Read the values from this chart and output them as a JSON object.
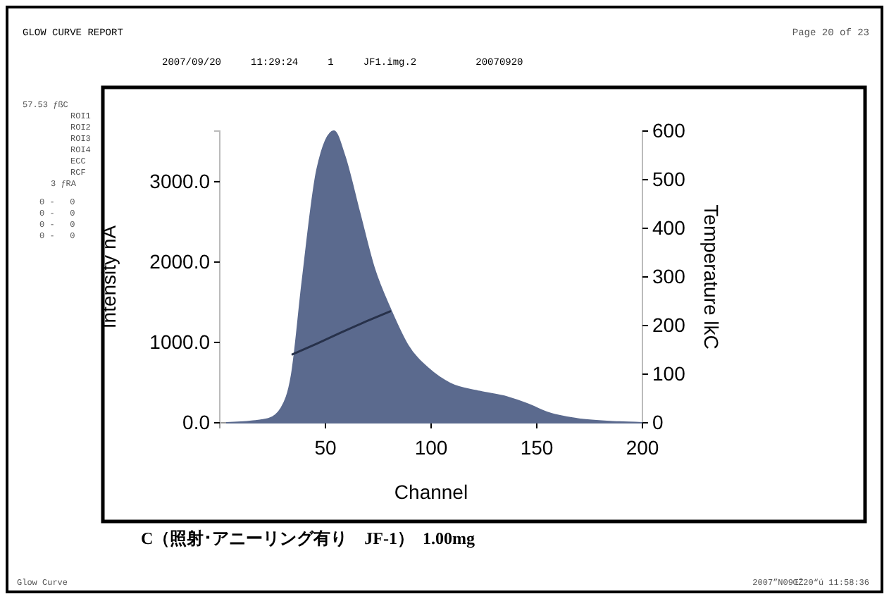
{
  "chart_data": {
    "type": "area",
    "title": "GLOW CURVE REPORT",
    "subtitle": "2007/09/20     11:29:24     1     JF1.img.2          20070920",
    "xlabel": "Channel",
    "ylabel": "Intensity nA",
    "y2label": "Temperature lkC",
    "x": [
      3,
      15,
      23,
      29,
      34,
      39,
      46,
      54,
      59,
      66,
      73,
      81,
      89,
      99,
      109,
      123,
      136,
      146,
      156,
      169,
      189,
      200
    ],
    "xlim": [
      0,
      200
    ],
    "xticks": [
      50,
      100,
      150,
      200
    ],
    "ylim": [
      0,
      3630
    ],
    "yticks": [
      {
        "value": 0,
        "label": "0.0"
      },
      {
        "value": 1000,
        "label": "1000.0"
      },
      {
        "value": 2000,
        "label": "2000.0"
      },
      {
        "value": 3000,
        "label": "3000.0"
      }
    ],
    "y2lim": [
      0,
      600
    ],
    "y2ticks": [
      0,
      100,
      200,
      300,
      400,
      500,
      600
    ],
    "series": [
      {
        "color": "#5b6a8e",
        "values": [
          0,
          20,
          50,
          180,
          600,
          1750,
          3150,
          3630,
          3330,
          2630,
          1930,
          1400,
          965,
          670,
          490,
          390,
          320,
          230,
          120,
          50,
          10,
          0
        ]
      },
      {
        "type": "line",
        "axis": "y2",
        "color": "#27314a",
        "x": [
          34,
          46,
          57,
          69,
          81
        ],
        "values": [
          140,
          163,
          185,
          208,
          230
        ]
      }
    ],
    "annotations": [
      "Page 20 of 23",
      "57.53 ƒßC",
      "ROI1",
      "ROI2",
      "ROI3",
      "ROI4",
      "ECC",
      "RCF",
      "3 ƒRA",
      "0 -   0",
      "0 -   0",
      "0 -   0",
      "0 -   0",
      "C（照射･アニーリング有り　JF-1）  1.00mg",
      "Glow Curve",
      "2007”N09ŒŽ20“ú 11:58:36"
    ]
  }
}
